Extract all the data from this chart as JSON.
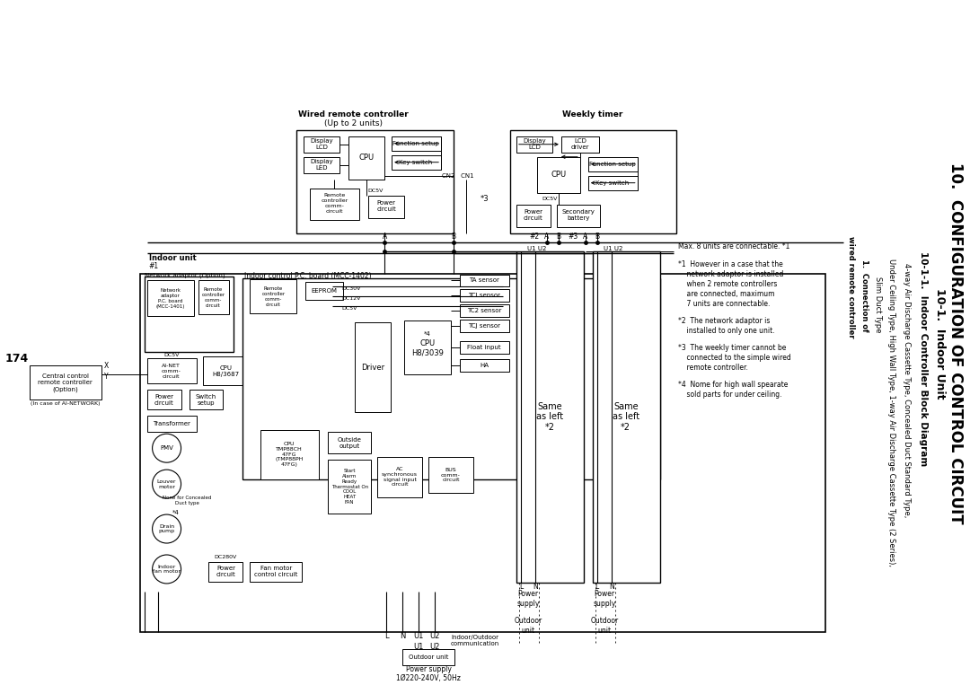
{
  "title_main": "10.  CONFIGURATION OF CONTROL CIRCUIT",
  "title_sub1": "10-1.  Indoor Unit",
  "title_sub2": "10-1-1.  Indoor Controller Block Diagram",
  "title_sub3": "4-way Air Discharge Cassette Type, Concealed Duct Standard Type,",
  "title_sub4": "Under Ceiling Type, High Wall Type, 1-way Air Discharge Cassette Type (2 Series),",
  "title_sub5": "Slim Duct Type",
  "title_sub6": "1.  Connection of",
  "title_sub7": "wired remote controller",
  "page_number": "174",
  "bg_color": "#ffffff"
}
